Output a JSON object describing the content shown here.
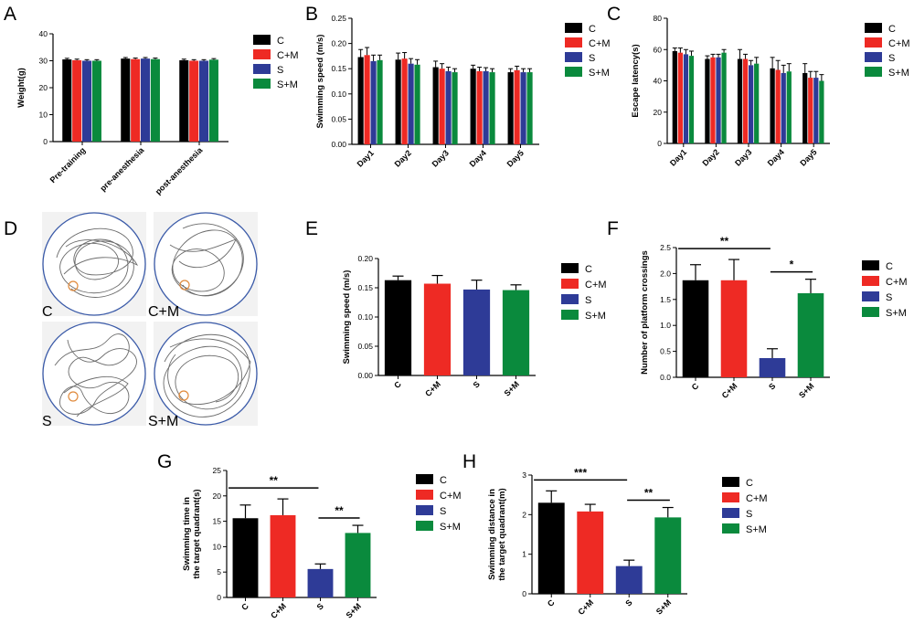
{
  "figure": {
    "panel_labels": {
      "A": "A",
      "B": "B",
      "C": "C",
      "D": "D",
      "E": "E",
      "F": "F",
      "G": "G",
      "H": "H"
    },
    "groups": [
      "C",
      "C+M",
      "S",
      "S+M"
    ],
    "colors": {
      "C": "#000000",
      "C+M": "#ee2a24",
      "S": "#2e3b97",
      "S+M": "#0a8a3d"
    },
    "trace_labels": [
      "C",
      "C+M",
      "S",
      "S+M"
    ]
  },
  "chart_data": [
    {
      "id": "A",
      "type": "bar",
      "title": "",
      "ylabel": "Weight(g)",
      "xlabel": "",
      "categories": [
        "Pre-training",
        "pre-anesthesia",
        "post-anesthesia"
      ],
      "ylim": [
        0,
        40
      ],
      "yticks": [
        0,
        10,
        20,
        30,
        40
      ],
      "series": [
        {
          "name": "C",
          "values": [
            30.5,
            30.8,
            30.2
          ],
          "errors": [
            0.4,
            0.4,
            0.4
          ]
        },
        {
          "name": "C+M",
          "values": [
            30.2,
            30.6,
            30.0
          ],
          "errors": [
            0.4,
            0.4,
            0.4
          ]
        },
        {
          "name": "S",
          "values": [
            30.0,
            30.8,
            30.0
          ],
          "errors": [
            0.4,
            0.4,
            0.4
          ]
        },
        {
          "name": "S+M",
          "values": [
            30.0,
            30.6,
            30.4
          ],
          "errors": [
            0.4,
            0.4,
            0.4
          ]
        }
      ],
      "legend": "right",
      "grid": false
    },
    {
      "id": "B",
      "type": "bar",
      "title": "",
      "ylabel": "Swimming speed (m/s)",
      "xlabel": "",
      "categories": [
        "Day1",
        "Day2",
        "Day3",
        "Day4",
        "Day5"
      ],
      "ylim": [
        0,
        0.25
      ],
      "yticks": [
        "0.00",
        "0.05",
        "0.10",
        "0.15",
        "0.20",
        "0.25"
      ],
      "series": [
        {
          "name": "C",
          "values": [
            0.173,
            0.168,
            0.153,
            0.15,
            0.143
          ],
          "errors": [
            0.015,
            0.013,
            0.012,
            0.007,
            0.007
          ]
        },
        {
          "name": "C+M",
          "values": [
            0.177,
            0.17,
            0.15,
            0.145,
            0.147
          ],
          "errors": [
            0.015,
            0.012,
            0.01,
            0.008,
            0.008
          ]
        },
        {
          "name": "S",
          "values": [
            0.165,
            0.16,
            0.145,
            0.145,
            0.143
          ],
          "errors": [
            0.012,
            0.01,
            0.008,
            0.007,
            0.007
          ]
        },
        {
          "name": "S+M",
          "values": [
            0.167,
            0.158,
            0.143,
            0.143,
            0.143
          ],
          "errors": [
            0.01,
            0.01,
            0.007,
            0.007,
            0.007
          ]
        }
      ],
      "legend": "right",
      "grid": false
    },
    {
      "id": "C",
      "type": "bar",
      "title": "",
      "ylabel": "Escape latency(s)",
      "xlabel": "",
      "categories": [
        "Day1",
        "Day2",
        "Day3",
        "Day4",
        "Day5"
      ],
      "ylim": [
        0,
        80
      ],
      "yticks": [
        0,
        20,
        40,
        60,
        80
      ],
      "series": [
        {
          "name": "C",
          "values": [
            59,
            54,
            54,
            48,
            45
          ],
          "errors": [
            2,
            2,
            6,
            7,
            6
          ]
        },
        {
          "name": "C+M",
          "values": [
            58,
            55,
            54,
            47,
            42
          ],
          "errors": [
            3,
            2,
            3,
            6,
            4
          ]
        },
        {
          "name": "S",
          "values": [
            57,
            55,
            50,
            45,
            42
          ],
          "errors": [
            3,
            2,
            3,
            5,
            4
          ]
        },
        {
          "name": "S+M",
          "values": [
            56,
            58,
            51,
            46,
            40
          ],
          "errors": [
            3,
            2,
            4,
            5,
            4
          ]
        }
      ],
      "legend": "right",
      "grid": false
    },
    {
      "id": "E",
      "type": "bar",
      "title": "",
      "ylabel": "Swimming speed (m/s)",
      "xlabel": "",
      "categories": [
        "C",
        "C+M",
        "S",
        "S+M"
      ],
      "ylim": [
        0,
        0.2
      ],
      "yticks": [
        "0.00",
        "0.05",
        "0.10",
        "0.15",
        "0.20"
      ],
      "values": [
        0.163,
        0.157,
        0.147,
        0.146
      ],
      "errors": [
        0.007,
        0.014,
        0.016,
        0.009
      ],
      "legend": "right",
      "grid": false
    },
    {
      "id": "F",
      "type": "bar",
      "title": "",
      "ylabel": "Number of platform crossings",
      "xlabel": "",
      "categories": [
        "C",
        "C+M",
        "S",
        "S+M"
      ],
      "ylim": [
        0,
        2.5
      ],
      "yticks": [
        "0.0",
        "0.5",
        "1.0",
        "1.5",
        "2.0",
        "2.5"
      ],
      "values": [
        1.87,
        1.87,
        0.37,
        1.62
      ],
      "errors": [
        0.3,
        0.4,
        0.18,
        0.27
      ],
      "significance": [
        {
          "from": 0,
          "to": 2,
          "label": "**"
        },
        {
          "from": 2,
          "to": 3,
          "label": "*"
        }
      ],
      "legend": "right",
      "grid": false
    },
    {
      "id": "G",
      "type": "bar",
      "title": "",
      "ylabel": [
        "Swimming time in",
        "the target quadrant(s)"
      ],
      "xlabel": "",
      "categories": [
        "C",
        "C+M",
        "S",
        "S+M"
      ],
      "ylim": [
        0,
        25
      ],
      "yticks": [
        0,
        5,
        10,
        15,
        20,
        25
      ],
      "values": [
        15.6,
        16.2,
        5.6,
        12.7
      ],
      "errors": [
        2.6,
        3.2,
        1.0,
        1.5
      ],
      "significance": [
        {
          "from": 0,
          "to": 2,
          "label": "**"
        },
        {
          "from": 2,
          "to": 3,
          "label": "**"
        }
      ],
      "legend": "right",
      "grid": false
    },
    {
      "id": "H",
      "type": "bar",
      "title": "",
      "ylabel": [
        "Swimming distance in",
        "the target quadrant(m)"
      ],
      "xlabel": "",
      "categories": [
        "C",
        "C+M",
        "S",
        "S+M"
      ],
      "ylim": [
        0,
        3
      ],
      "yticks": [
        0,
        1,
        2,
        3
      ],
      "values": [
        2.3,
        2.08,
        0.7,
        1.93
      ],
      "errors": [
        0.3,
        0.18,
        0.15,
        0.25
      ],
      "significance": [
        {
          "from": 0,
          "to": 2,
          "label": "***"
        },
        {
          "from": 2,
          "to": 3,
          "label": "**"
        }
      ],
      "legend": "right",
      "grid": false
    }
  ]
}
